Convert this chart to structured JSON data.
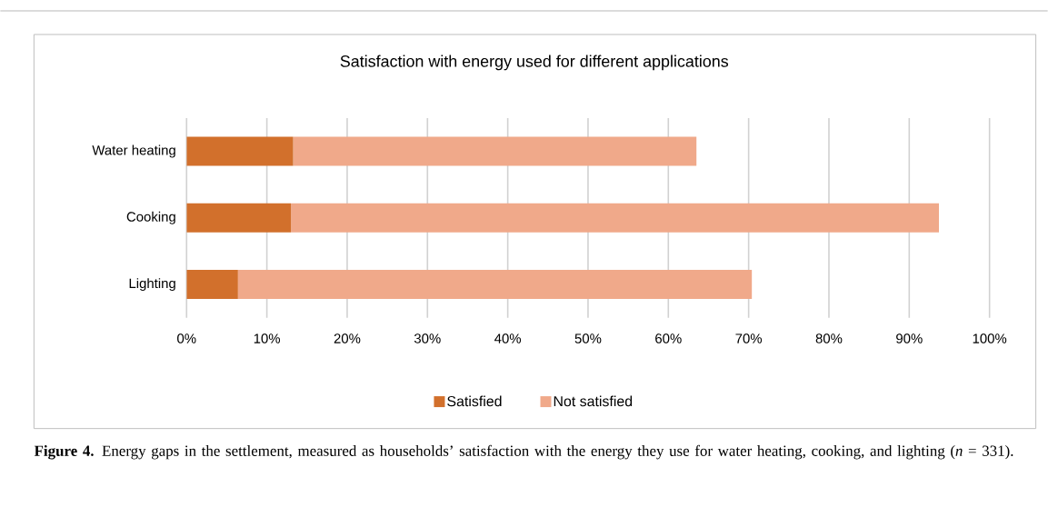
{
  "chart_data": {
    "type": "bar",
    "orientation": "horizontal",
    "stacked": true,
    "title": "Satisfaction with energy used for different applications",
    "categories": [
      "Water heating",
      "Cooking",
      "Lighting"
    ],
    "series": [
      {
        "name": "Satisfied",
        "color": "#d2702c",
        "values": [
          13.3,
          13.0,
          6.4
        ]
      },
      {
        "name": "Not satisfied",
        "color": "#f0a98a",
        "values": [
          50.2,
          80.7,
          64.0
        ]
      }
    ],
    "xlim": [
      0,
      100
    ],
    "xticks": [
      {
        "value": 0,
        "label": "0%"
      },
      {
        "value": 10,
        "label": "10%"
      },
      {
        "value": 20,
        "label": "20%"
      },
      {
        "value": 30,
        "label": "30%"
      },
      {
        "value": 40,
        "label": "40%"
      },
      {
        "value": 50,
        "label": "50%"
      },
      {
        "value": 60,
        "label": "60%"
      },
      {
        "value": 70,
        "label": "70%"
      },
      {
        "value": 80,
        "label": "80%"
      },
      {
        "value": 90,
        "label": "90%"
      },
      {
        "value": 100,
        "label": "100%"
      }
    ],
    "grid": "x",
    "legend": "bottom",
    "annotations": [
      "**Figure 4.** Energy gaps in the settlement, measured as households’ satisfaction with the energy they use for water heating, cooking, and lighting (*n* = 331)."
    ]
  }
}
